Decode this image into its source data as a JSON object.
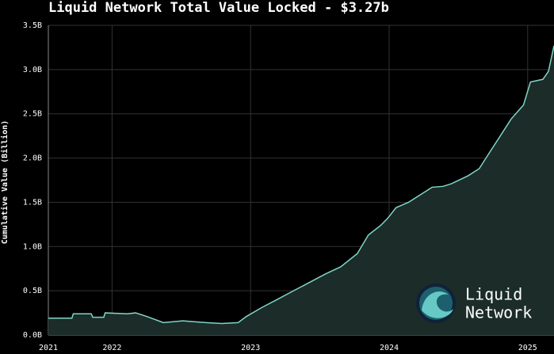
{
  "chart_data": {
    "type": "area",
    "title": "Liquid Network Total Value Locked - $3.27b",
    "y_label": "Cumulative Value (Billion)",
    "logo": [
      "Liquid",
      "Network"
    ],
    "color": "#7fd6c8",
    "fill_color": "#1b2c29",
    "grid": true,
    "xlim": [
      2021.54,
      2025.19
    ],
    "xticks": [
      {
        "value": 2021.54,
        "label": "2021"
      },
      2022,
      2023,
      2024,
      2025
    ],
    "ylim": [
      0,
      3.5
    ],
    "yticks": [
      {
        "value": 0,
        "label": "0.0B"
      },
      {
        "value": 0.5,
        "label": "0.5B"
      },
      {
        "value": 1,
        "label": "1.0B"
      },
      {
        "value": 1.5,
        "label": "1.5B"
      },
      {
        "value": 2,
        "label": "2.0B"
      },
      {
        "value": 2.5,
        "label": "2.5B"
      },
      {
        "value": 3,
        "label": "3.0B"
      },
      {
        "value": 3.5,
        "label": "3.5B"
      }
    ],
    "x": [
      2021.54,
      2021.62,
      2021.71,
      2021.72,
      2021.85,
      2021.86,
      2021.94,
      2021.95,
      2022.11,
      2022.17,
      2022.25,
      2022.37,
      2022.51,
      2022.68,
      2022.79,
      2022.91,
      2022.97,
      2023.08,
      2023.19,
      2023.31,
      2023.42,
      2023.54,
      2023.65,
      2023.77,
      2023.85,
      2023.94,
      2023.99,
      2024.05,
      2024.14,
      2024.22,
      2024.31,
      2024.39,
      2024.45,
      2024.57,
      2024.65,
      2024.74,
      2024.79,
      2024.88,
      2024.97,
      2025.02,
      2025.11,
      2025.15,
      2025.19
    ],
    "values": [
      0.19,
      0.19,
      0.19,
      0.24,
      0.24,
      0.2,
      0.2,
      0.25,
      0.24,
      0.25,
      0.21,
      0.14,
      0.16,
      0.14,
      0.13,
      0.14,
      0.21,
      0.31,
      0.4,
      0.5,
      0.59,
      0.69,
      0.77,
      0.92,
      1.13,
      1.24,
      1.32,
      1.44,
      1.5,
      1.58,
      1.67,
      1.68,
      1.71,
      1.8,
      1.88,
      2.1,
      2.22,
      2.44,
      2.6,
      2.86,
      2.89,
      2.98,
      3.27
    ]
  }
}
